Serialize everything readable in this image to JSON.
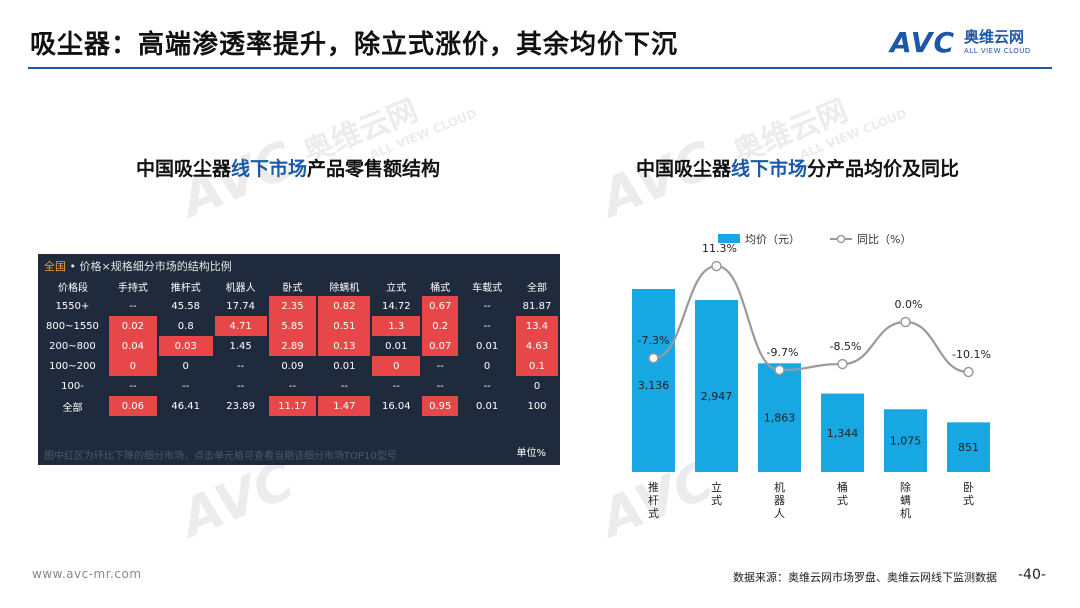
{
  "header": {
    "title": "吸尘器：高端渗透率提升，除立式涨价，其余均价下沉",
    "logo_mark": "AVC",
    "logo_cn": "奥维云网",
    "logo_en": "ALL VIEW CLOUD"
  },
  "watermark": {
    "mark": "AVC",
    "cn": "奥维云网",
    "en": "ALL VIEW CLOUD"
  },
  "left_section": {
    "title_pre": "中国吸尘器",
    "title_hl": "线下市场",
    "title_post": "产品零售额结构"
  },
  "right_section": {
    "title_pre": "中国吸尘器",
    "title_hl": "线下市场",
    "title_post": "分产品均价及同比"
  },
  "table": {
    "scope": "全国",
    "title": " • 价格×规格细分市场的结构比例",
    "headers": [
      "价格段",
      "手持式",
      "推杆式",
      "机器人",
      "卧式",
      "除螨机",
      "立式",
      "桶式",
      "车载式",
      "全部"
    ],
    "rows": [
      {
        "cells": [
          "1550+",
          "--",
          "45.58",
          "17.74",
          "2.35",
          "0.82",
          "14.72",
          "0.67",
          "--",
          "81.87"
        ],
        "red": [
          4,
          5,
          7
        ]
      },
      {
        "cells": [
          "800~1550",
          "0.02",
          "0.8",
          "4.71",
          "5.85",
          "0.51",
          "1.3",
          "0.2",
          "--",
          "13.4"
        ],
        "red": [
          1,
          3,
          4,
          5,
          6,
          7,
          9
        ]
      },
      {
        "cells": [
          "200~800",
          "0.04",
          "0.03",
          "1.45",
          "2.89",
          "0.13",
          "0.01",
          "0.07",
          "0.01",
          "4.63"
        ],
        "red": [
          1,
          2,
          4,
          5,
          7,
          9
        ]
      },
      {
        "cells": [
          "100~200",
          "0",
          "0",
          "--",
          "0.09",
          "0.01",
          "0",
          "--",
          "0",
          "0.1"
        ],
        "red": [
          1,
          6,
          9
        ]
      },
      {
        "cells": [
          "100-",
          "--",
          "--",
          "--",
          "--",
          "--",
          "--",
          "--",
          "--",
          "0"
        ],
        "red": []
      },
      {
        "cells": [
          "全部",
          "0.06",
          "46.41",
          "23.89",
          "11.17",
          "1.47",
          "16.04",
          "0.95",
          "0.01",
          "100"
        ],
        "red": [
          1,
          4,
          5,
          7
        ]
      }
    ],
    "footer_note": "图中红区为环比下降的细分市场，点击单元格可查看当期该细分市场TOP10型号",
    "unit": "单位%"
  },
  "chart_data": {
    "type": "bar",
    "categories": [
      "推杆式",
      "立式",
      "机器人",
      "桶式",
      "除螨机",
      "卧式"
    ],
    "series": [
      {
        "name": "均价（元）",
        "type": "bar",
        "values": [
          3136,
          2947,
          1863,
          1344,
          1075,
          851
        ],
        "color": "#17a8e3"
      },
      {
        "name": "同比（%）",
        "type": "line",
        "values": [
          -7.3,
          11.3,
          -9.7,
          -8.5,
          0.0,
          -10.1
        ],
        "labels": [
          "-7.3%",
          "11.3%",
          "-9.7%",
          "-8.5%",
          "0.0%",
          "-10.1%"
        ],
        "color": "#9a9a9a"
      }
    ],
    "bar_labels": [
      "3,136",
      "2,947",
      "1,863",
      "1,344",
      "1,075",
      "851"
    ],
    "legend_position": "top",
    "grid": false
  },
  "footer": {
    "url": "www.avc-mr.com",
    "source": "数据来源：奥维云网市场罗盘、奥维云网线下监测数据",
    "page": "-40-"
  }
}
